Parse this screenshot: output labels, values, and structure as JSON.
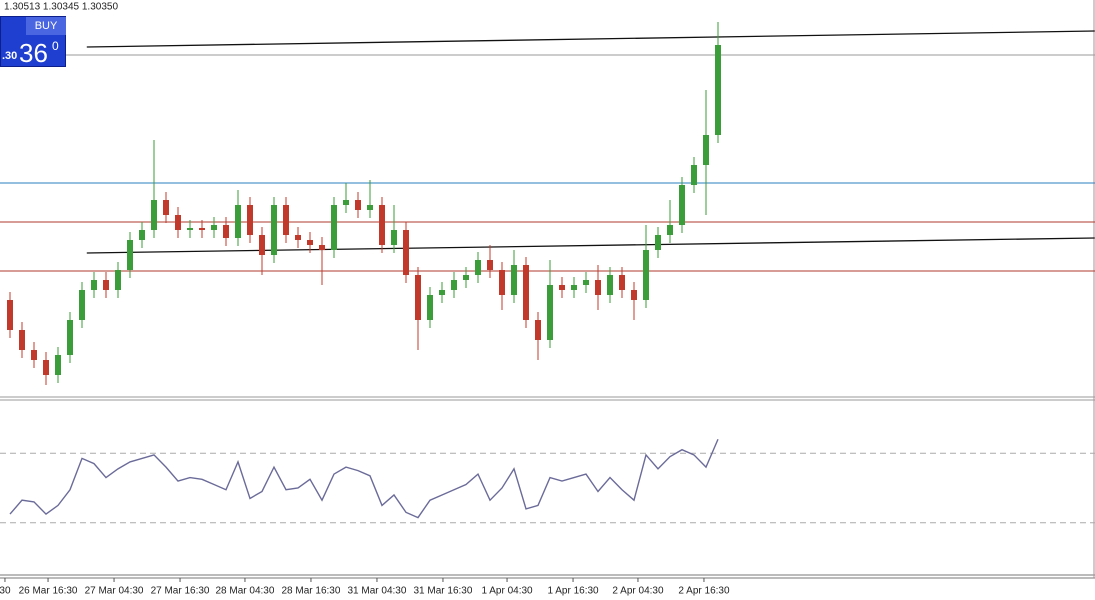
{
  "header": {
    "ohlc_text": "1.30513 1.30345 1.30350"
  },
  "buy_panel": {
    "label": "BUY",
    "price_prefix": ".30",
    "price_big": "36",
    "price_sup": "0"
  },
  "chart_data": {
    "type": "candlestick",
    "xlim": [
      -0.8333,
      90.4167
    ],
    "ylim": [
      1.2933,
      1.3053
    ],
    "bull_color": "#3a9d3a",
    "bear_color": "#c0392b",
    "open": [
      1.2963,
      1.2954,
      1.2948,
      1.2945,
      1.29405,
      1.29465,
      1.2957,
      1.2966,
      1.2969,
      1.2966,
      1.2972,
      1.2981,
      1.2984,
      1.2993,
      1.29885,
      1.2984,
      1.29846,
      1.2984,
      1.29855,
      1.29816,
      1.29915,
      1.29825,
      1.29765,
      1.29915,
      1.29825,
      1.2981,
      1.29795,
      1.2978,
      1.29915,
      1.2993,
      1.299,
      1.29915,
      1.29795,
      1.2984,
      1.29705,
      1.2957,
      1.29645,
      1.2966,
      1.2969,
      1.29705,
      1.2975,
      1.2972,
      1.29645,
      1.29735,
      1.2957,
      1.2951,
      1.29675,
      1.2966,
      1.29675,
      1.2969,
      1.29645,
      1.29705,
      1.2966,
      1.2963,
      1.2978,
      1.29825,
      1.29855,
      1.29975,
      1.30035,
      1.30125
    ],
    "high": [
      1.29654,
      1.29564,
      1.29504,
      1.29474,
      1.29489,
      1.29594,
      1.29684,
      1.29714,
      1.29714,
      1.29744,
      1.29834,
      1.29864,
      1.3011,
      1.29954,
      1.29909,
      1.2987,
      1.2987,
      1.29879,
      1.29879,
      1.2996,
      1.29939,
      1.29849,
      1.29939,
      1.29939,
      1.29849,
      1.29834,
      1.29819,
      1.29939,
      1.29981,
      1.29954,
      1.2999,
      1.29939,
      1.29915,
      1.29864,
      1.29729,
      1.29669,
      1.29684,
      1.29714,
      1.29729,
      1.29774,
      1.29795,
      1.29744,
      1.2978,
      1.29759,
      1.29594,
      1.2975,
      1.29699,
      1.29699,
      1.29714,
      1.29735,
      1.29729,
      1.29729,
      1.29684,
      1.29855,
      1.29849,
      1.2993,
      1.29999,
      1.30059,
      1.3026,
      1.30464
    ],
    "low": [
      1.29516,
      1.29456,
      1.29426,
      1.29375,
      1.29381,
      1.29441,
      1.29546,
      1.29636,
      1.29636,
      1.29636,
      1.29696,
      1.29786,
      1.29816,
      1.29861,
      1.29816,
      1.29816,
      1.29816,
      1.29816,
      1.29792,
      1.29792,
      1.29801,
      1.29705,
      1.29741,
      1.29801,
      1.29786,
      1.29771,
      1.29675,
      1.29756,
      1.29891,
      1.29876,
      1.29876,
      1.29771,
      1.29771,
      1.29681,
      1.2948,
      1.29546,
      1.29621,
      1.29636,
      1.29666,
      1.29681,
      1.29696,
      1.296,
      1.29621,
      1.29546,
      1.2945,
      1.29486,
      1.29636,
      1.29636,
      1.29651,
      1.296,
      1.29621,
      1.29636,
      1.2957,
      1.29606,
      1.29756,
      1.29801,
      1.29831,
      1.29951,
      1.29885,
      1.30101
    ],
    "close": [
      1.2954,
      1.2948,
      1.2945,
      1.29405,
      1.29465,
      1.2957,
      1.2966,
      1.2969,
      1.2966,
      1.2972,
      1.2981,
      1.2984,
      1.2993,
      1.29885,
      1.2984,
      1.29846,
      1.2984,
      1.29855,
      1.29816,
      1.29915,
      1.29825,
      1.29765,
      1.29915,
      1.29825,
      1.2981,
      1.29795,
      1.2978,
      1.29915,
      1.2993,
      1.299,
      1.29915,
      1.29795,
      1.2984,
      1.29705,
      1.2957,
      1.29645,
      1.2966,
      1.2969,
      1.29705,
      1.2975,
      1.2972,
      1.29645,
      1.29735,
      1.2957,
      1.2951,
      1.29675,
      1.2966,
      1.29675,
      1.2969,
      1.29645,
      1.29705,
      1.2966,
      1.2963,
      1.2978,
      1.29825,
      1.29855,
      1.29975,
      1.30035,
      1.30125,
      1.30395
    ],
    "hlines": [
      {
        "value": 1.29981,
        "color": "#2a7fbf"
      },
      {
        "value": 1.29864,
        "color": "#b03a2e"
      },
      {
        "value": 1.29717,
        "color": "#b03a2e"
      },
      {
        "value": 1.30365,
        "color": "#9a9a9a"
      }
    ],
    "trendlines": [
      {
        "x": [
          6.4,
          90.4
        ],
        "y": [
          1.30389,
          1.30437
        ],
        "color": "#111"
      },
      {
        "x": [
          6.4,
          90.4
        ],
        "y": [
          1.29771,
          1.29816
        ],
        "color": "#111"
      }
    ],
    "xticks": [
      {
        "value": -0.42,
        "label": "30"
      },
      {
        "value": 3.17,
        "label": "26 Mar 16:30"
      },
      {
        "value": 8.67,
        "label": "27 Mar 04:30"
      },
      {
        "value": 14.17,
        "label": "27 Mar 16:30"
      },
      {
        "value": 19.58,
        "label": "28 Mar 04:30"
      },
      {
        "value": 25.08,
        "label": "28 Mar 16:30"
      },
      {
        "value": 30.58,
        "label": "31 Mar 04:30"
      },
      {
        "value": 36.08,
        "label": "31 Mar 16:30"
      },
      {
        "value": 41.42,
        "label": "1 Apr 04:30"
      },
      {
        "value": 46.92,
        "label": "1 Apr 16:30"
      },
      {
        "value": 52.33,
        "label": "2 Apr 04:30"
      },
      {
        "value": 57.83,
        "label": "2 Apr 16:30"
      }
    ],
    "oscillator": {
      "type": "line",
      "ylim": [
        0,
        100
      ],
      "levels": [
        30,
        70
      ],
      "color": "#6b6b9a",
      "values": [
        35,
        43,
        42,
        35,
        40,
        49,
        67,
        64,
        56,
        61,
        65,
        67,
        69,
        62,
        54,
        56,
        55,
        52,
        49,
        65,
        44,
        48,
        62,
        49,
        50,
        55,
        43,
        58,
        62,
        60,
        57,
        40,
        46,
        36,
        33,
        43,
        46,
        49,
        52,
        58,
        43,
        50,
        61,
        38,
        40,
        56,
        54,
        56,
        58,
        48,
        56,
        49,
        43,
        69,
        61,
        68,
        72,
        69,
        62,
        78
      ]
    }
  }
}
